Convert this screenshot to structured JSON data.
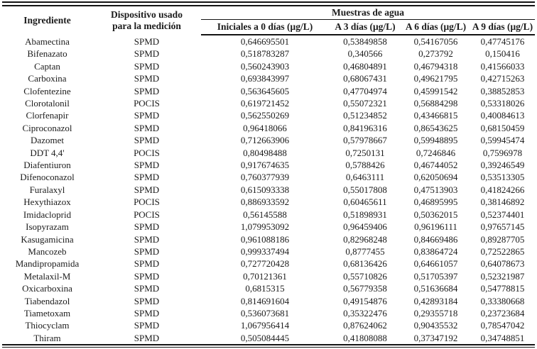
{
  "table": {
    "headers": {
      "col_ingredient": "Ingrediente",
      "col_device_line1": "Dispositivo usado",
      "col_device_line2": "para la medición",
      "group_water": "Muestras de agua",
      "col_initial": "Iniciales a 0 días (μg/L)",
      "col_3days": "A 3 días (μg/L)",
      "col_6days": "A 6 días (μg/L)",
      "col_9days": "A 9 días (μg/L)"
    },
    "rows": [
      [
        "Abamectina",
        "SPMD",
        "0,646695501",
        "0,53849858",
        "0,54167056",
        "0,47745176"
      ],
      [
        "Bifenazato",
        "SPMD",
        "0,518783287",
        "0,340566",
        "0,273792",
        "0,150416"
      ],
      [
        "Captan",
        "SPMD",
        "0,560243903",
        "0,46804891",
        "0,46794318",
        "0,41566033"
      ],
      [
        "Carboxina",
        "SPMD",
        "0,693843997",
        "0,68067431",
        "0,49621795",
        "0,42715263"
      ],
      [
        "Clofentezine",
        "SPMD",
        "0,563645605",
        "0,47704974",
        "0,45991542",
        "0,38852853"
      ],
      [
        "Clorotalonil",
        "POCIS",
        "0,619721452",
        "0,55072321",
        "0,56884298",
        "0,53318026"
      ],
      [
        "Clorfenapir",
        "SPMD",
        "0,562550269",
        "0,51234852",
        "0,43466815",
        "0,40084613"
      ],
      [
        "Ciproconazol",
        "SPMD",
        "0,96418066",
        "0,84196316",
        "0,86543625",
        "0,68150459"
      ],
      [
        "Dazomet",
        "SPMD",
        "0,712663906",
        "0,57978667",
        "0,59948895",
        "0,59945474"
      ],
      [
        "DDT 4,4'",
        "POCIS",
        "0,80498488",
        "0,7250131",
        "0,7246846",
        "0,7596978"
      ],
      [
        "Diafentiuron",
        "SPMD",
        "0,917674635",
        "0,5788426",
        "0,46744052",
        "0,39246549"
      ],
      [
        "Difenoconazol",
        "SPMD",
        "0,760377939",
        "0,6463111",
        "0,62050694",
        "0,53513305"
      ],
      [
        "Furalaxyl",
        "SPMD",
        "0,615093338",
        "0,55017808",
        "0,47513903",
        "0,41824266"
      ],
      [
        "Hexythiazox",
        "POCIS",
        "0,886933592",
        "0,60465611",
        "0,46895995",
        "0,38146892"
      ],
      [
        "Imidacloprid",
        "POCIS",
        "0,56145588",
        "0,51898931",
        "0,50362015",
        "0,52374401"
      ],
      [
        "Isopyrazam",
        "SPMD",
        "1,079953092",
        "0,96459406",
        "0,96196111",
        "0,97657145"
      ],
      [
        "Kasugamicina",
        "SPMD",
        "0,961088186",
        "0,82968248",
        "0,84669486",
        "0,89287705"
      ],
      [
        "Mancozeb",
        "SPMD",
        "0,999337494",
        "0,8777455",
        "0,83864724",
        "0,72522865"
      ],
      [
        "Mandipropamida",
        "SPMD",
        "0,727720428",
        "0,68136426",
        "0,64661057",
        "0,64078673"
      ],
      [
        "Metalaxil-M",
        "SPMD",
        "0,70121361",
        "0,55710826",
        "0,51705397",
        "0,52321987"
      ],
      [
        "Oxicarboxina",
        "SPMD",
        "0,6815315",
        "0,56779358",
        "0,51636684",
        "0,54778815"
      ],
      [
        "Tiabendazol",
        "SPMD",
        "0,814691604",
        "0,49154876",
        "0,42893184",
        "0,33380668"
      ],
      [
        "Tiametoxam",
        "SPMD",
        "0,536073681",
        "0,35322476",
        "0,29355718",
        "0,23723684"
      ],
      [
        "Thiocyclam",
        "SPMD",
        "1,067956414",
        "0,87624062",
        "0,90435532",
        "0,78547042"
      ],
      [
        "Thiram",
        "SPMD",
        "0,505084445",
        "0,41808088",
        "0,37347192",
        "0,34748851"
      ]
    ]
  }
}
